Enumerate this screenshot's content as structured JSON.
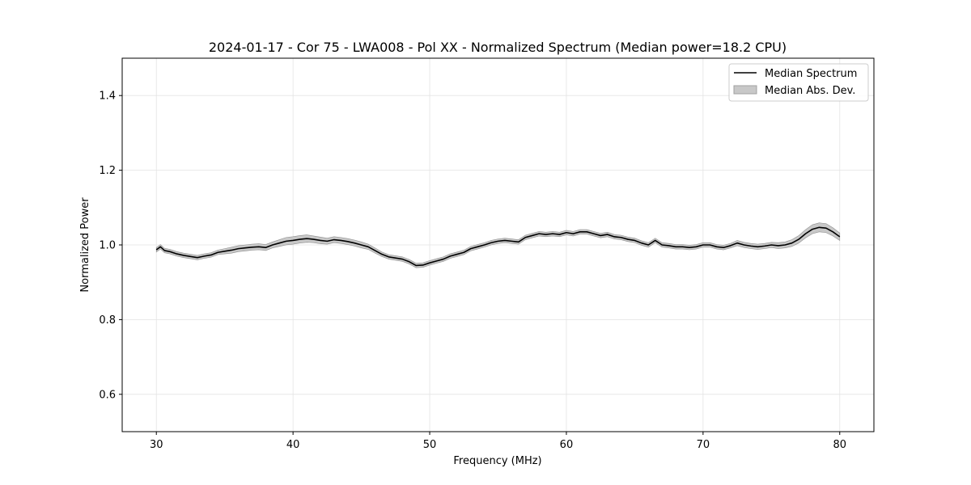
{
  "chart_data": {
    "type": "line",
    "title": "2024-01-17 - Cor 75 - LWA008 - Pol XX - Normalized Spectrum (Median power=18.2 CPU)",
    "xlabel": "Frequency (MHz)",
    "ylabel": "Normalized Power",
    "xlim": [
      27.5,
      82.5
    ],
    "ylim": [
      0.5,
      1.5
    ],
    "xticks": [
      30,
      40,
      50,
      60,
      70,
      80
    ],
    "yticks": [
      0.6,
      0.8,
      1.0,
      1.2,
      1.4
    ],
    "xtick_labels": [
      "30",
      "40",
      "50",
      "60",
      "70",
      "80"
    ],
    "ytick_labels": [
      "0.6",
      "0.8",
      "1.0",
      "1.2",
      "1.4"
    ],
    "grid": true,
    "legend_position": "top-right",
    "legend": [
      "Median Spectrum",
      "Median Abs. Dev."
    ],
    "series": [
      {
        "name": "Median Spectrum",
        "style": "line",
        "color": "#000000",
        "x": [
          30.0,
          30.3,
          30.6,
          31.0,
          31.5,
          32.0,
          32.5,
          33.0,
          33.5,
          34.0,
          34.5,
          35.0,
          35.5,
          36.0,
          36.5,
          37.0,
          37.5,
          38.0,
          38.5,
          39.0,
          39.5,
          40.0,
          40.5,
          41.0,
          41.5,
          42.0,
          42.5,
          43.0,
          43.5,
          44.0,
          44.5,
          45.0,
          45.5,
          46.0,
          46.5,
          47.0,
          47.5,
          48.0,
          48.5,
          49.0,
          49.5,
          50.0,
          50.5,
          51.0,
          51.5,
          52.0,
          52.5,
          53.0,
          53.5,
          54.0,
          54.5,
          55.0,
          55.5,
          56.0,
          56.5,
          57.0,
          57.5,
          58.0,
          58.5,
          59.0,
          59.5,
          60.0,
          60.5,
          61.0,
          61.5,
          62.0,
          62.5,
          63.0,
          63.5,
          64.0,
          64.5,
          65.0,
          65.5,
          66.0,
          66.5,
          67.0,
          67.5,
          68.0,
          68.5,
          69.0,
          69.5,
          70.0,
          70.5,
          71.0,
          71.5,
          72.0,
          72.5,
          73.0,
          73.5,
          74.0,
          74.5,
          75.0,
          75.5,
          76.0,
          76.5,
          77.0,
          77.5,
          78.0,
          78.5,
          79.0,
          79.5,
          80.0
        ],
        "y": [
          0.987,
          0.995,
          0.985,
          0.982,
          0.976,
          0.972,
          0.969,
          0.966,
          0.97,
          0.973,
          0.98,
          0.983,
          0.986,
          0.99,
          0.992,
          0.994,
          0.995,
          0.993,
          1.0,
          1.005,
          1.01,
          1.012,
          1.015,
          1.017,
          1.015,
          1.012,
          1.01,
          1.014,
          1.012,
          1.009,
          1.005,
          1.0,
          0.995,
          0.985,
          0.975,
          0.968,
          0.965,
          0.962,
          0.955,
          0.945,
          0.946,
          0.952,
          0.957,
          0.962,
          0.97,
          0.975,
          0.98,
          0.99,
          0.995,
          1.0,
          1.006,
          1.01,
          1.012,
          1.01,
          1.008,
          1.02,
          1.025,
          1.03,
          1.028,
          1.03,
          1.028,
          1.033,
          1.03,
          1.035,
          1.035,
          1.03,
          1.025,
          1.028,
          1.022,
          1.02,
          1.015,
          1.012,
          1.005,
          1.0,
          1.012,
          1.0,
          0.998,
          0.995,
          0.995,
          0.993,
          0.995,
          1.0,
          1.0,
          0.995,
          0.993,
          0.998,
          1.005,
          1.0,
          0.997,
          0.995,
          0.997,
          1.0,
          0.998,
          1.0,
          1.005,
          1.015,
          1.03,
          1.042,
          1.047,
          1.045,
          1.035,
          1.022
        ]
      },
      {
        "name": "Median Abs. Dev.",
        "style": "band",
        "color": "#c8c8c8",
        "edge_color": "#8f8f8f",
        "half_width": [
          0.006,
          0.006,
          0.006,
          0.006,
          0.006,
          0.006,
          0.006,
          0.006,
          0.006,
          0.006,
          0.006,
          0.007,
          0.008,
          0.008,
          0.008,
          0.008,
          0.008,
          0.008,
          0.008,
          0.009,
          0.01,
          0.01,
          0.01,
          0.01,
          0.009,
          0.009,
          0.008,
          0.008,
          0.008,
          0.008,
          0.008,
          0.008,
          0.007,
          0.007,
          0.006,
          0.006,
          0.006,
          0.006,
          0.006,
          0.006,
          0.006,
          0.006,
          0.006,
          0.006,
          0.006,
          0.006,
          0.006,
          0.006,
          0.006,
          0.006,
          0.006,
          0.006,
          0.006,
          0.006,
          0.006,
          0.006,
          0.006,
          0.006,
          0.006,
          0.006,
          0.006,
          0.006,
          0.006,
          0.006,
          0.006,
          0.006,
          0.006,
          0.006,
          0.006,
          0.006,
          0.006,
          0.006,
          0.006,
          0.006,
          0.006,
          0.006,
          0.006,
          0.006,
          0.006,
          0.006,
          0.006,
          0.006,
          0.006,
          0.006,
          0.006,
          0.006,
          0.007,
          0.007,
          0.007,
          0.007,
          0.007,
          0.007,
          0.008,
          0.008,
          0.009,
          0.01,
          0.011,
          0.012,
          0.012,
          0.012,
          0.011,
          0.01
        ]
      }
    ]
  }
}
